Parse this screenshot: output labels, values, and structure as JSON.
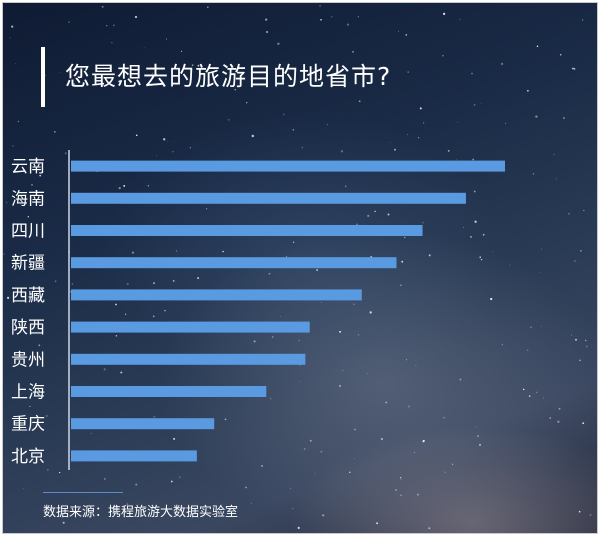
{
  "title": "您最想去的旅游目的地省市?",
  "source": "数据来源：携程旅游大数据实验室",
  "colors": {
    "bar": "#5a9ae0",
    "axis": "#cfd6e2",
    "text": "#ffffff"
  },
  "chart_data": {
    "type": "bar",
    "orientation": "horizontal",
    "title": "您最想去的旅游目的地省市?",
    "categories": [
      "云南",
      "海南",
      "四川",
      "新疆",
      "西藏",
      "陕西",
      "贵州",
      "上海",
      "重庆",
      "北京"
    ],
    "values": [
      100,
      91,
      81,
      75,
      67,
      55,
      54,
      45,
      33,
      29
    ],
    "value_unit": "relative (no axis shown)",
    "grid": false,
    "legend": "none"
  }
}
